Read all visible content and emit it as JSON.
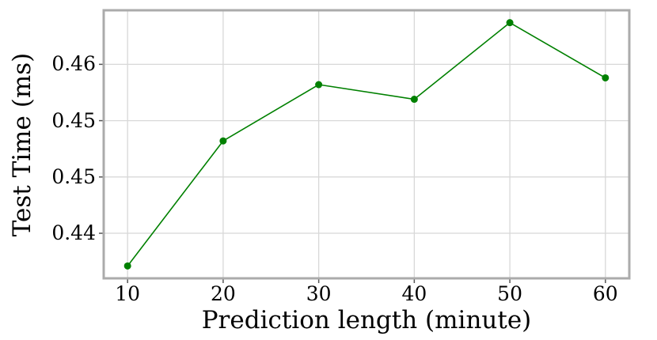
{
  "chart_data": {
    "type": "line",
    "title": "",
    "xlabel": "Prediction length (minute)",
    "ylabel": "Test Time (ms)",
    "x": [
      10,
      20,
      30,
      40,
      50,
      60
    ],
    "series": [
      {
        "name": "test-time",
        "values": [
          0.4421,
          0.4532,
          0.4582,
          0.4569,
          0.4637,
          0.4588
        ],
        "color": "#008000",
        "marker": "circle"
      }
    ],
    "xlim": [
      7.5,
      62.5
    ],
    "ylim": [
      0.441,
      0.4648
    ],
    "xticks": [
      10,
      20,
      30,
      40,
      50,
      60
    ],
    "xtick_labels": [
      "10",
      "20",
      "30",
      "40",
      "50",
      "60"
    ],
    "yticks": [
      0.445,
      0.45,
      0.455,
      0.46
    ],
    "ytick_labels": [
      "0.44",
      "0.45",
      "0.45",
      "0.46"
    ],
    "grid": true,
    "legend": "none",
    "colors": {
      "grid": "#d8d8d8",
      "spine": "#ababab",
      "tick": "#555555",
      "text": "#000000",
      "background": "#ffffff"
    }
  }
}
